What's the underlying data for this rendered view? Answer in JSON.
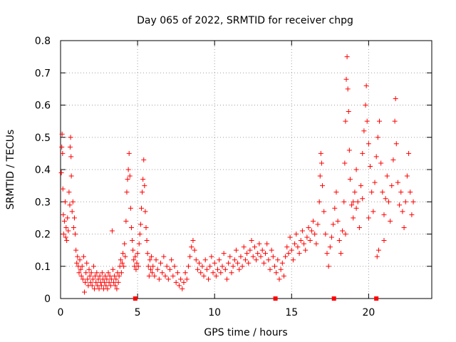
{
  "chart_data": {
    "type": "scatter",
    "title": "Day 065 of 2022, SRMTID for receiver chpg",
    "xlabel": "GPS time / hours",
    "ylabel": "SRMTID / TECUs",
    "xlim": [
      0,
      24.1
    ],
    "ylim": [
      0,
      0.8
    ],
    "xticks": [
      0,
      5,
      10,
      15,
      20
    ],
    "yticks": [
      0,
      0.1,
      0.2,
      0.3,
      0.4,
      0.5,
      0.6,
      0.7,
      0.8
    ],
    "grid": true,
    "marker": "+",
    "color": "#ff0000",
    "series": [
      {
        "name": "SRMTID",
        "points": [
          [
            0.05,
            0.39
          ],
          [
            0.08,
            0.47
          ],
          [
            0.1,
            0.51
          ],
          [
            0.13,
            0.45
          ],
          [
            0.15,
            0.34
          ],
          [
            0.18,
            0.26
          ],
          [
            0.2,
            0.2
          ],
          [
            0.25,
            0.24
          ],
          [
            0.3,
            0.3
          ],
          [
            0.33,
            0.19
          ],
          [
            0.36,
            0.22
          ],
          [
            0.4,
            0.18
          ],
          [
            0.45,
            0.25
          ],
          [
            0.5,
            0.21
          ],
          [
            0.55,
            0.33
          ],
          [
            0.6,
            0.29
          ],
          [
            0.62,
            0.47
          ],
          [
            0.65,
            0.5
          ],
          [
            0.68,
            0.44
          ],
          [
            0.7,
            0.38
          ],
          [
            0.75,
            0.27
          ],
          [
            0.8,
            0.3
          ],
          [
            0.85,
            0.22
          ],
          [
            0.9,
            0.25
          ],
          [
            0.95,
            0.2
          ],
          [
            1.0,
            0.15
          ],
          [
            1.05,
            0.11
          ],
          [
            1.1,
            0.13
          ],
          [
            1.15,
            0.1
          ],
          [
            1.2,
            0.08
          ],
          [
            1.25,
            0.12
          ],
          [
            1.3,
            0.09
          ],
          [
            1.35,
            0.07
          ],
          [
            1.4,
            0.1
          ],
          [
            1.45,
            0.06
          ],
          [
            1.5,
            0.13
          ],
          [
            1.55,
            0.02
          ],
          [
            1.6,
            0.05
          ],
          [
            1.65,
            0.08
          ],
          [
            1.7,
            0.11
          ],
          [
            1.75,
            0.06
          ],
          [
            1.8,
            0.04
          ],
          [
            1.85,
            0.09
          ],
          [
            1.9,
            0.07
          ],
          [
            1.95,
            0.05
          ],
          [
            2.0,
            0.08
          ],
          [
            2.05,
            0.04
          ],
          [
            2.1,
            0.06
          ],
          [
            2.15,
            0.1
          ],
          [
            2.2,
            0.03
          ],
          [
            2.25,
            0.07
          ],
          [
            2.3,
            0.05
          ],
          [
            2.35,
            0.08
          ],
          [
            2.4,
            0.04
          ],
          [
            2.45,
            0.06
          ],
          [
            2.5,
            0.03
          ],
          [
            2.55,
            0.07
          ],
          [
            2.6,
            0.05
          ],
          [
            2.65,
            0.04
          ],
          [
            2.7,
            0.08
          ],
          [
            2.75,
            0.06
          ],
          [
            2.8,
            0.03
          ],
          [
            2.85,
            0.05
          ],
          [
            2.9,
            0.07
          ],
          [
            2.95,
            0.04
          ],
          [
            3.0,
            0.06
          ],
          [
            3.05,
            0.03
          ],
          [
            3.1,
            0.08
          ],
          [
            3.15,
            0.05
          ],
          [
            3.2,
            0.07
          ],
          [
            3.25,
            0.04
          ],
          [
            3.3,
            0.06
          ],
          [
            3.35,
            0.21
          ],
          [
            3.4,
            0.09
          ],
          [
            3.45,
            0.05
          ],
          [
            3.5,
            0.07
          ],
          [
            3.55,
            0.04
          ],
          [
            3.6,
            0.06
          ],
          [
            3.65,
            0.03
          ],
          [
            3.7,
            0.08
          ],
          [
            3.75,
            0.05
          ],
          [
            3.8,
            0.07
          ],
          [
            3.85,
            0.1
          ],
          [
            3.9,
            0.12
          ],
          [
            3.95,
            0.08
          ],
          [
            4.0,
            0.11
          ],
          [
            4.05,
            0.14
          ],
          [
            4.1,
            0.1
          ],
          [
            4.15,
            0.17
          ],
          [
            4.2,
            0.13
          ],
          [
            4.25,
            0.24
          ],
          [
            4.3,
            0.33
          ],
          [
            4.35,
            0.37
          ],
          [
            4.4,
            0.4
          ],
          [
            4.45,
            0.45
          ],
          [
            4.5,
            0.38
          ],
          [
            4.55,
            0.28
          ],
          [
            4.6,
            0.22
          ],
          [
            4.65,
            0.18
          ],
          [
            4.7,
            0.15
          ],
          [
            4.75,
            0.12
          ],
          [
            4.8,
            0.1
          ],
          [
            4.85,
            0.13
          ],
          [
            4.9,
            0.09
          ],
          [
            4.95,
            0.11
          ],
          [
            5.0,
            0.14
          ],
          [
            5.05,
            0.1
          ],
          [
            5.1,
            0.17
          ],
          [
            5.15,
            0.2
          ],
          [
            5.2,
            0.23
          ],
          [
            5.25,
            0.28
          ],
          [
            5.3,
            0.33
          ],
          [
            5.35,
            0.37
          ],
          [
            5.4,
            0.43
          ],
          [
            5.45,
            0.35
          ],
          [
            5.5,
            0.27
          ],
          [
            5.55,
            0.22
          ],
          [
            5.6,
            0.18
          ],
          [
            5.65,
            0.14
          ],
          [
            5.7,
            0.1
          ],
          [
            5.75,
            0.07
          ],
          [
            5.8,
            0.12
          ],
          [
            5.85,
            0.09
          ],
          [
            5.9,
            0.13
          ],
          [
            5.95,
            0.08
          ],
          [
            6.0,
            0.1
          ],
          [
            6.1,
            0.07
          ],
          [
            6.2,
            0.12
          ],
          [
            6.3,
            0.09
          ],
          [
            6.4,
            0.06
          ],
          [
            6.5,
            0.11
          ],
          [
            6.6,
            0.08
          ],
          [
            6.7,
            0.13
          ],
          [
            6.8,
            0.07
          ],
          [
            6.9,
            0.1
          ],
          [
            7.0,
            0.06
          ],
          [
            7.1,
            0.09
          ],
          [
            7.2,
            0.12
          ],
          [
            7.3,
            0.07
          ],
          [
            7.4,
            0.1
          ],
          [
            7.5,
            0.05
          ],
          [
            7.6,
            0.08
          ],
          [
            7.7,
            0.04
          ],
          [
            7.8,
            0.06
          ],
          [
            7.9,
            0.03
          ],
          [
            8.0,
            0.05
          ],
          [
            8.1,
            0.08
          ],
          [
            8.2,
            0.06
          ],
          [
            8.3,
            0.1
          ],
          [
            8.4,
            0.13
          ],
          [
            8.5,
            0.16
          ],
          [
            8.6,
            0.18
          ],
          [
            8.7,
            0.15
          ],
          [
            8.8,
            0.12
          ],
          [
            8.9,
            0.09
          ],
          [
            9.0,
            0.11
          ],
          [
            9.1,
            0.08
          ],
          [
            9.2,
            0.1
          ],
          [
            9.3,
            0.07
          ],
          [
            9.4,
            0.12
          ],
          [
            9.5,
            0.09
          ],
          [
            9.6,
            0.06
          ],
          [
            9.7,
            0.1
          ],
          [
            9.8,
            0.13
          ],
          [
            9.9,
            0.08
          ],
          [
            10.0,
            0.11
          ],
          [
            10.1,
            0.07
          ],
          [
            10.2,
            0.09
          ],
          [
            10.3,
            0.12
          ],
          [
            10.4,
            0.08
          ],
          [
            10.5,
            0.1
          ],
          [
            10.6,
            0.14
          ],
          [
            10.7,
            0.09
          ],
          [
            10.8,
            0.06
          ],
          [
            10.9,
            0.11
          ],
          [
            11.0,
            0.13
          ],
          [
            11.1,
            0.08
          ],
          [
            11.2,
            0.1
          ],
          [
            11.3,
            0.12
          ],
          [
            11.4,
            0.15
          ],
          [
            11.5,
            0.11
          ],
          [
            11.6,
            0.09
          ],
          [
            11.7,
            0.13
          ],
          [
            11.8,
            0.1
          ],
          [
            11.9,
            0.16
          ],
          [
            12.0,
            0.12
          ],
          [
            12.1,
            0.14
          ],
          [
            12.2,
            0.11
          ],
          [
            12.3,
            0.15
          ],
          [
            12.4,
            0.18
          ],
          [
            12.5,
            0.13
          ],
          [
            12.6,
            0.16
          ],
          [
            12.7,
            0.12
          ],
          [
            12.8,
            0.14
          ],
          [
            12.9,
            0.17
          ],
          [
            13.0,
            0.13
          ],
          [
            13.1,
            0.15
          ],
          [
            13.2,
            0.11
          ],
          [
            13.3,
            0.14
          ],
          [
            13.4,
            0.17
          ],
          [
            13.5,
            0.12
          ],
          [
            13.6,
            0.09
          ],
          [
            13.7,
            0.15
          ],
          [
            13.8,
            0.13
          ],
          [
            13.9,
            0.1
          ],
          [
            14.0,
            0.08
          ],
          [
            14.1,
            0.12
          ],
          [
            14.2,
            0.06
          ],
          [
            14.3,
            0.09
          ],
          [
            14.4,
            0.11
          ],
          [
            14.5,
            0.07
          ],
          [
            14.6,
            0.13
          ],
          [
            14.7,
            0.16
          ],
          [
            14.8,
            0.14
          ],
          [
            14.9,
            0.19
          ],
          [
            15.0,
            0.15
          ],
          [
            15.1,
            0.12
          ],
          [
            15.2,
            0.17
          ],
          [
            15.3,
            0.2
          ],
          [
            15.4,
            0.16
          ],
          [
            15.5,
            0.14
          ],
          [
            15.6,
            0.18
          ],
          [
            15.7,
            0.21
          ],
          [
            15.8,
            0.17
          ],
          [
            15.9,
            0.15
          ],
          [
            16.0,
            0.19
          ],
          [
            16.1,
            0.22
          ],
          [
            16.2,
            0.18
          ],
          [
            16.3,
            0.21
          ],
          [
            16.4,
            0.24
          ],
          [
            16.5,
            0.2
          ],
          [
            16.6,
            0.17
          ],
          [
            16.7,
            0.23
          ],
          [
            16.8,
            0.3
          ],
          [
            16.85,
            0.38
          ],
          [
            16.9,
            0.45
          ],
          [
            16.95,
            0.42
          ],
          [
            17.0,
            0.35
          ],
          [
            17.1,
            0.27
          ],
          [
            17.2,
            0.2
          ],
          [
            17.3,
            0.14
          ],
          [
            17.4,
            0.1
          ],
          [
            17.5,
            0.16
          ],
          [
            17.6,
            0.19
          ],
          [
            17.7,
            0.23
          ],
          [
            17.8,
            0.28
          ],
          [
            17.9,
            0.33
          ],
          [
            18.0,
            0.24
          ],
          [
            18.1,
            0.18
          ],
          [
            18.2,
            0.14
          ],
          [
            18.3,
            0.21
          ],
          [
            18.4,
            0.3
          ],
          [
            18.45,
            0.42
          ],
          [
            18.5,
            0.55
          ],
          [
            18.55,
            0.68
          ],
          [
            18.6,
            0.75
          ],
          [
            18.65,
            0.65
          ],
          [
            18.7,
            0.58
          ],
          [
            18.75,
            0.46
          ],
          [
            18.8,
            0.37
          ],
          [
            18.9,
            0.29
          ],
          [
            19.0,
            0.25
          ],
          [
            19.1,
            0.33
          ],
          [
            19.2,
            0.4
          ],
          [
            19.3,
            0.3
          ],
          [
            19.4,
            0.22
          ],
          [
            19.5,
            0.35
          ],
          [
            19.6,
            0.45
          ],
          [
            19.7,
            0.52
          ],
          [
            19.8,
            0.6
          ],
          [
            19.85,
            0.66
          ],
          [
            19.9,
            0.55
          ],
          [
            20.0,
            0.48
          ],
          [
            20.1,
            0.41
          ],
          [
            20.2,
            0.33
          ],
          [
            20.3,
            0.27
          ],
          [
            20.4,
            0.36
          ],
          [
            20.5,
            0.44
          ],
          [
            20.6,
            0.5
          ],
          [
            20.7,
            0.55
          ],
          [
            20.8,
            0.42
          ],
          [
            20.9,
            0.33
          ],
          [
            21.0,
            0.26
          ],
          [
            21.1,
            0.31
          ],
          [
            21.2,
            0.38
          ],
          [
            21.3,
            0.3
          ],
          [
            21.4,
            0.24
          ],
          [
            21.5,
            0.35
          ],
          [
            21.6,
            0.43
          ],
          [
            21.7,
            0.55
          ],
          [
            21.75,
            0.62
          ],
          [
            21.8,
            0.48
          ],
          [
            21.9,
            0.36
          ],
          [
            22.0,
            0.29
          ],
          [
            22.1,
            0.33
          ],
          [
            22.2,
            0.27
          ],
          [
            22.3,
            0.22
          ],
          [
            22.4,
            0.3
          ],
          [
            22.5,
            0.38
          ],
          [
            22.6,
            0.45
          ],
          [
            22.7,
            0.33
          ],
          [
            22.8,
            0.26
          ],
          [
            22.9,
            0.3
          ],
          [
            20.55,
            0.13
          ],
          [
            20.65,
            0.15
          ],
          [
            19.0,
            0.3
          ],
          [
            19.2,
            0.28
          ],
          [
            18.5,
            0.2
          ],
          [
            19.6,
            0.31
          ],
          [
            20.0,
            0.25
          ],
          [
            21.0,
            0.18
          ]
        ]
      }
    ],
    "bottom_markers": [
      4.85,
      13.95,
      17.75,
      20.5
    ]
  }
}
